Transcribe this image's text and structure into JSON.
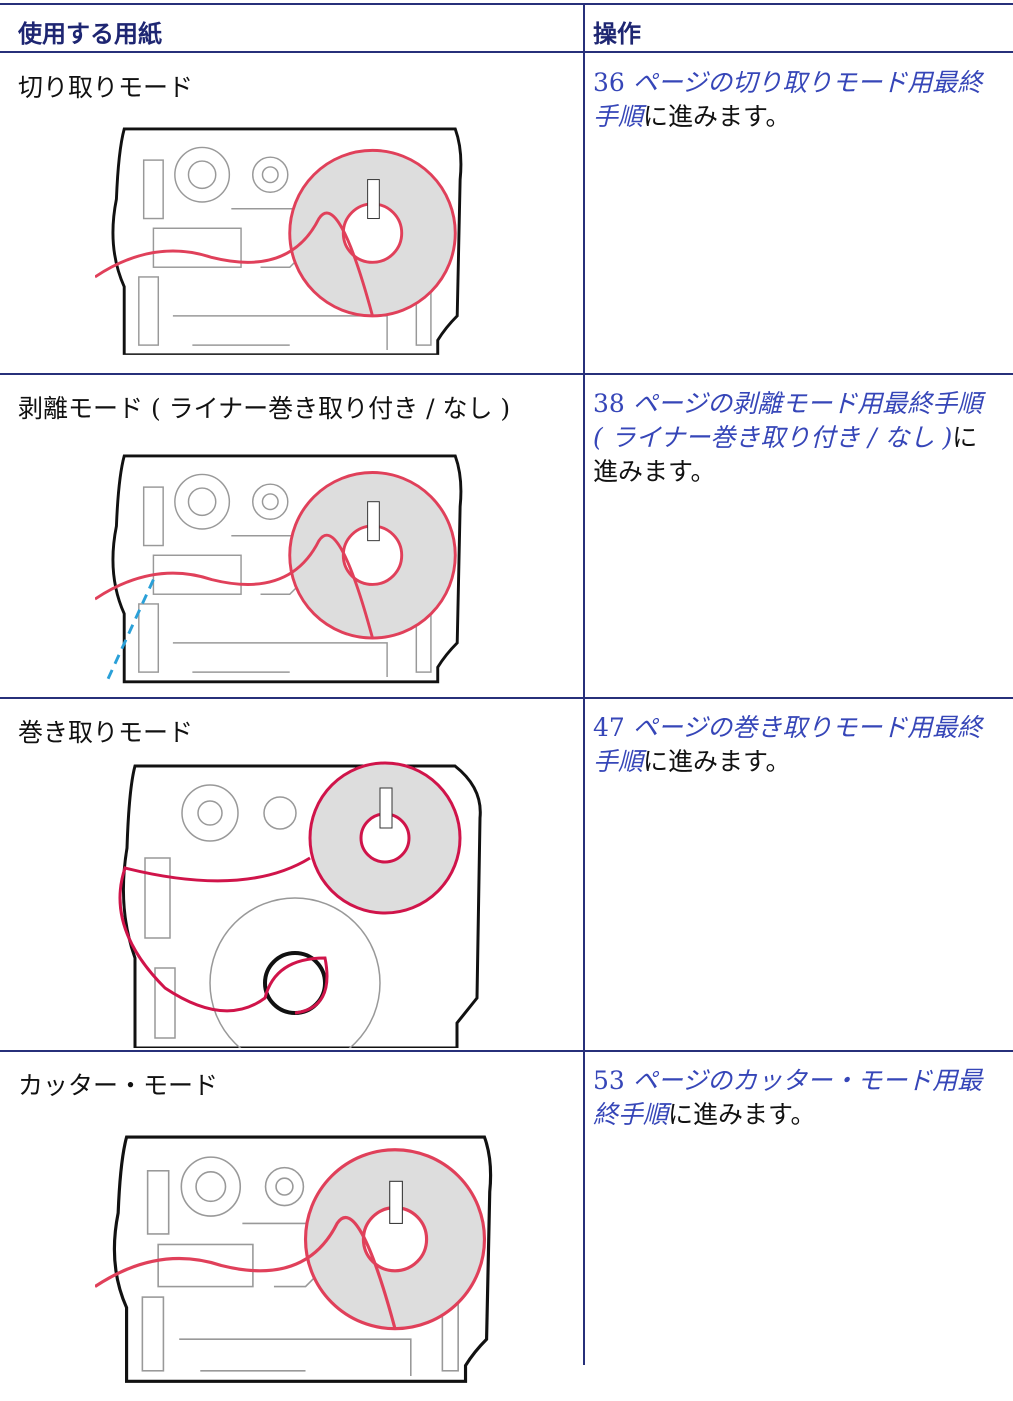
{
  "table": {
    "header": [
      "使用する用紙",
      "操作"
    ],
    "rows": [
      {
        "mode": "切り取りモード",
        "page": "36",
        "page_suffix": "ページの",
        "link": "切り取りモード用最終手順",
        "rest": "に進みます。"
      },
      {
        "mode": "剥離モード ( ライナー巻き取り付き / なし )",
        "page": "38",
        "page_suffix": "ページの",
        "link": "剥離モード用最終手順 ( ライナー巻き取り付き / なし )",
        "rest": "に進みます。"
      },
      {
        "mode": "巻き取りモード",
        "page": "47",
        "page_suffix": "ページの",
        "link": "巻き取りモード用最終手順",
        "rest": "に進みます。"
      },
      {
        "mode": "カッター・モード",
        "page": "53",
        "page_suffix": "ページの",
        "link": "カッター・モード用最終手順",
        "rest": "に進みます。"
      }
    ]
  }
}
